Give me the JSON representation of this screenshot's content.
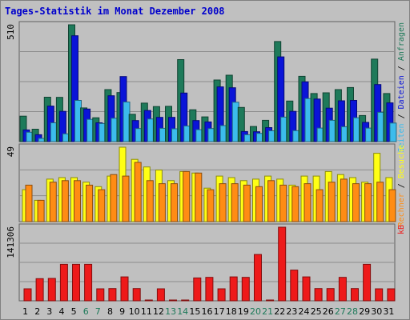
{
  "title": "Tages-Statistik im Monat Dezember 2008",
  "colors": {
    "background": "#c0c0c0",
    "frame": "#808080",
    "title": "#0000cc",
    "anfragen": "#1e7a5a",
    "dateien": "#0a14d8",
    "seiten": "#3cbcec",
    "besuche": "#ffff14",
    "rechner": "#ff8c14",
    "kb": "#ee1a1a",
    "weekday": "#000000",
    "weekend": "#1e7a5a"
  },
  "chart_data": [
    {
      "type": "bar",
      "panel": "hits",
      "y_max_label": "510",
      "ylim": [
        0,
        510
      ],
      "side_label_parts": [
        {
          "text": "Seiten",
          "color_key": "seiten"
        },
        {
          "text": " / ",
          "color_key": "weekday"
        },
        {
          "text": "Dateien",
          "color_key": "dateien"
        },
        {
          "text": " / ",
          "color_key": "weekday"
        },
        {
          "text": "Anfragen",
          "color_key": "anfragen"
        }
      ],
      "categories": [
        "1",
        "2",
        "3",
        "4",
        "5",
        "6",
        "7",
        "8",
        "9",
        "10",
        "11",
        "12",
        "13",
        "14",
        "15",
        "16",
        "17",
        "18",
        "19",
        "20",
        "21",
        "22",
        "23",
        "24",
        "25",
        "26",
        "27",
        "28",
        "29",
        "30",
        "31"
      ],
      "series": [
        {
          "name": "Anfragen",
          "color_key": "anfragen",
          "values": [
            111,
            54,
            194,
            193,
            510,
            147,
            104,
            227,
            214,
            119,
            168,
            153,
            154,
            358,
            139,
            108,
            269,
            290,
            149,
            66,
            93,
            437,
            177,
            285,
            210,
            213,
            227,
            236,
            114,
            360,
            210
          ]
        },
        {
          "name": "Dateien",
          "color_key": "dateien",
          "values": [
            51,
            30,
            155,
            132,
            462,
            142,
            82,
            200,
            284,
            92,
            136,
            106,
            106,
            212,
            92,
            86,
            239,
            235,
            44,
            43,
            61,
            370,
            132,
            261,
            186,
            146,
            178,
            180,
            84,
            249,
            169
          ]
        },
        {
          "name": "Seiten",
          "color_key": "seiten",
          "values": [
            41,
            14,
            82,
            34,
            180,
            97,
            79,
            102,
            173,
            57,
            99,
            58,
            56,
            68,
            52,
            57,
            70,
            172,
            30,
            36,
            47,
            107,
            48,
            188,
            59,
            93,
            65,
            104,
            59,
            128,
            81
          ]
        }
      ]
    },
    {
      "type": "bar",
      "panel": "visits",
      "y_max_label": "49",
      "ylim": [
        0,
        49
      ],
      "side_label_parts": [
        {
          "text": "Rechner",
          "color_key": "rechner"
        },
        {
          "text": " / ",
          "color_key": "weekday"
        },
        {
          "text": "Besuche",
          "color_key": "besuche"
        }
      ],
      "categories": [
        "1",
        "2",
        "3",
        "4",
        "5",
        "6",
        "7",
        "8",
        "9",
        "10",
        "11",
        "12",
        "13",
        "14",
        "15",
        "16",
        "17",
        "18",
        "19",
        "20",
        "21",
        "22",
        "23",
        "24",
        "25",
        "26",
        "27",
        "28",
        "29",
        "30",
        "31"
      ],
      "series": [
        {
          "name": "Besuche",
          "color_key": "besuche",
          "values": [
            21,
            14,
            28,
            29,
            29,
            26,
            23,
            30,
            49,
            41,
            36,
            34,
            27,
            33,
            32,
            22,
            30,
            29,
            27,
            28,
            30,
            28,
            24,
            30,
            30,
            33,
            31,
            29,
            26,
            45,
            29
          ]
        },
        {
          "name": "Rechner",
          "color_key": "rechner",
          "values": [
            24,
            14,
            26,
            27,
            27,
            24,
            21,
            31,
            30,
            39,
            27,
            25,
            25,
            33,
            32,
            21,
            25,
            25,
            24,
            23,
            27,
            24,
            23,
            25,
            21,
            26,
            28,
            25,
            25,
            26,
            21
          ]
        }
      ]
    },
    {
      "type": "bar",
      "panel": "kb",
      "y_max_label": "141306",
      "ylim": [
        0,
        141306
      ],
      "side_label_parts": [
        {
          "text": "kB",
          "color_key": "kb"
        }
      ],
      "categories": [
        "1",
        "2",
        "3",
        "4",
        "5",
        "6",
        "7",
        "8",
        "9",
        "10",
        "11",
        "12",
        "13",
        "14",
        "15",
        "16",
        "17",
        "18",
        "19",
        "20",
        "21",
        "22",
        "23",
        "24",
        "25",
        "26",
        "27",
        "28",
        "29",
        "30",
        "31"
      ],
      "series": [
        {
          "name": "kB",
          "color_key": "kb",
          "values": [
            23000,
            42500,
            43000,
            70000,
            70000,
            70000,
            23000,
            23500,
            46000,
            23500,
            1000,
            23000,
            1000,
            1500,
            44000,
            45000,
            23000,
            46000,
            45000,
            89000,
            1000,
            141306,
            59000,
            46000,
            23500,
            23500,
            45000,
            23500,
            70000,
            23000,
            23000
          ]
        }
      ]
    }
  ],
  "weekend_days": [
    "6",
    "7",
    "13",
    "14",
    "20",
    "21",
    "27",
    "28"
  ]
}
